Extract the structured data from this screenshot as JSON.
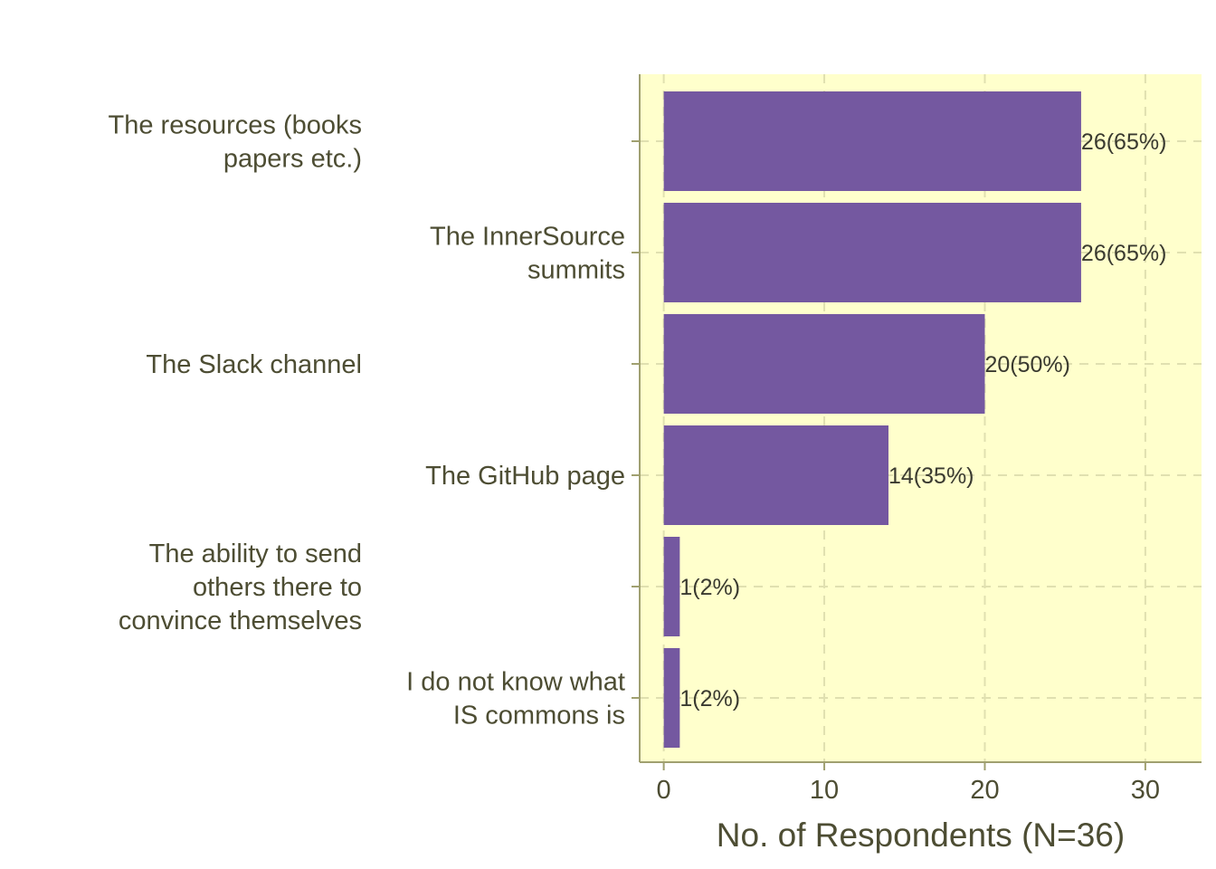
{
  "chart_data": {
    "type": "bar",
    "orientation": "horizontal",
    "categories": [
      [
        "The resources (books",
        "papers etc.)"
      ],
      [
        "The InnerSource",
        "summits"
      ],
      [
        "The Slack channel"
      ],
      [
        "The GitHub page"
      ],
      [
        "The ability to send",
        "others there to",
        "convince themselves"
      ],
      [
        "I do not know what",
        "IS commons is"
      ]
    ],
    "values": [
      26,
      26,
      20,
      14,
      1,
      1
    ],
    "data_labels": [
      "26(65%)",
      "26(65%)",
      "20(50%)",
      "14(35%)",
      "1(2%)",
      "1(2%)"
    ],
    "xlabel": "No. of Respondents (N=36)",
    "ylabel": "",
    "xlim": [
      -1.5,
      33.5
    ],
    "xticks": [
      0,
      10,
      20,
      30
    ],
    "grid": true,
    "colors": {
      "bar": "#7458a0",
      "panel": "#ffffcc",
      "grid": "#e0e0b0",
      "axis": "#a0a070",
      "text": "#4d4d33"
    }
  }
}
